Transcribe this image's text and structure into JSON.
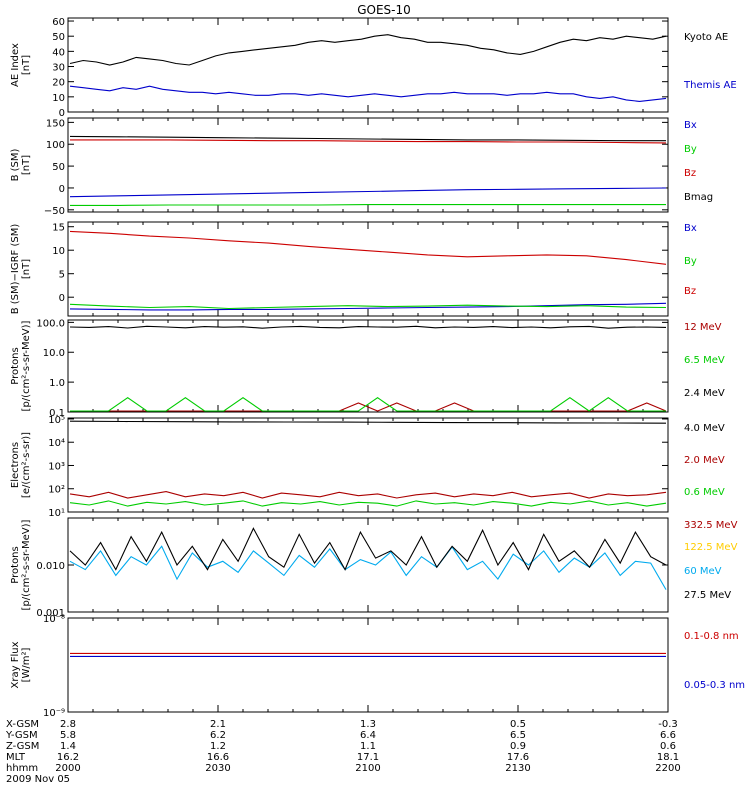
{
  "title": "GOES-10",
  "chart_data": [
    {
      "type": "line",
      "ylabel": [
        "AE Index",
        "[nT]"
      ],
      "ylim": [
        0,
        62
      ],
      "yticks": [
        "0",
        "10",
        "20",
        "30",
        "40",
        "50",
        "60"
      ],
      "ytick_values": [
        0,
        10,
        20,
        30,
        40,
        50,
        60
      ],
      "series": [
        {
          "name": "Kyoto AE",
          "color": "#000000",
          "values": [
            32,
            34,
            33,
            31,
            33,
            36,
            35,
            34,
            32,
            31,
            34,
            37,
            39,
            40,
            41,
            42,
            43,
            44,
            46,
            47,
            46,
            47,
            48,
            50,
            51,
            49,
            48,
            46,
            46,
            45,
            44,
            42,
            41,
            39,
            38,
            40,
            43,
            46,
            48,
            47,
            49,
            48,
            50,
            49,
            48,
            50
          ]
        },
        {
          "name": "Themis AE",
          "color": "#0000cc",
          "values": [
            17,
            16,
            15,
            14,
            16,
            15,
            17,
            15,
            14,
            13,
            13,
            12,
            13,
            12,
            11,
            11,
            12,
            12,
            11,
            12,
            11,
            10,
            11,
            12,
            11,
            10,
            11,
            12,
            12,
            13,
            12,
            12,
            12,
            11,
            12,
            12,
            13,
            12,
            12,
            10,
            9,
            10,
            8,
            7,
            8,
            9
          ]
        }
      ]
    },
    {
      "type": "line",
      "ylabel": [
        "B (SM)",
        "[nT]"
      ],
      "ylim": [
        -55,
        160
      ],
      "yticks": [
        "−50",
        "0",
        "50",
        "100",
        "150"
      ],
      "ytick_values": [
        -50,
        0,
        50,
        100,
        150
      ],
      "series": [
        {
          "name": "Bx",
          "color": "#0000cc",
          "values": [
            -20,
            -18,
            -16,
            -14,
            -12,
            -10,
            -8,
            -6,
            -4,
            -3,
            -2,
            -1,
            0
          ]
        },
        {
          "name": "By",
          "color": "#00cc00",
          "values": [
            -40,
            -40,
            -39,
            -39,
            -39,
            -39,
            -38,
            -38,
            -38,
            -38,
            -38,
            -38,
            -38
          ]
        },
        {
          "name": "Bz",
          "color": "#cc0000",
          "values": [
            110,
            110,
            110,
            109,
            108,
            108,
            107,
            106,
            106,
            105,
            105,
            104,
            103
          ]
        },
        {
          "name": "Bmag",
          "color": "#000000",
          "values": [
            118,
            117,
            116,
            115,
            114,
            113,
            112,
            111,
            110,
            110,
            109,
            108,
            108
          ]
        }
      ]
    },
    {
      "type": "line",
      "ylabel": [
        "B (SM)−IGRF (SM)",
        "[nT]"
      ],
      "ylim": [
        -4,
        16
      ],
      "yticks": [
        "0",
        "5",
        "10",
        "15"
      ],
      "ytick_values": [
        0,
        5,
        10,
        15
      ],
      "series": [
        {
          "name": "Bx",
          "color": "#0000cc",
          "values": [
            -2.5,
            -2.6,
            -2.7,
            -2.7,
            -2.6,
            -2.6,
            -2.5,
            -2.4,
            -2.3,
            -2.2,
            -2.1,
            -2.0,
            -1.8,
            -1.6,
            -1.5,
            -1.3
          ]
        },
        {
          "name": "By",
          "color": "#00cc00",
          "values": [
            -1.5,
            -1.9,
            -2.2,
            -2.0,
            -2.4,
            -2.2,
            -2.0,
            -1.8,
            -2.0,
            -1.9,
            -1.7,
            -1.9,
            -2.0,
            -1.8,
            -2.1,
            -2.2
          ]
        },
        {
          "name": "Bz",
          "color": "#cc0000",
          "values": [
            14,
            13.6,
            13,
            12.6,
            12,
            11.5,
            10.8,
            10.2,
            9.6,
            9,
            8.6,
            8.8,
            9,
            8.8,
            8,
            7
          ]
        }
      ]
    },
    {
      "type": "line",
      "ylabel": [
        "Protons",
        "[p/(cm²-s-sr-MeV)]"
      ],
      "ylog": true,
      "ylim": [
        0.1,
        120
      ],
      "yticks": [
        "0.1",
        "1.0",
        "10.0",
        "100.0"
      ],
      "ytick_values": [
        0.1,
        1,
        10,
        100
      ],
      "series": [
        {
          "name": "12 MeV",
          "color": "#aa0000",
          "values": [
            0.1,
            0.1,
            0.1,
            0.1,
            0.1,
            0.1,
            0.1,
            0.1,
            0.1,
            0.1,
            0.1,
            0.1,
            0.1,
            0.1,
            0.1,
            0.2,
            0.1,
            0.2,
            0.1,
            0.1,
            0.2,
            0.1,
            0.1,
            0.1,
            0.1,
            0.1,
            0.1,
            0.1,
            0.1,
            0.1,
            0.2,
            0.1
          ]
        },
        {
          "name": "6.5 MeV",
          "color": "#00cc00",
          "values": [
            0.1,
            0.1,
            0.1,
            0.3,
            0.1,
            0.1,
            0.3,
            0.1,
            0.1,
            0.3,
            0.1,
            0.1,
            0.1,
            0.1,
            0.1,
            0.1,
            0.3,
            0.1,
            0.1,
            0.1,
            0.1,
            0.1,
            0.1,
            0.1,
            0.1,
            0.1,
            0.3,
            0.1,
            0.3,
            0.1,
            0.1,
            0.1
          ]
        },
        {
          "name": "2.4 MeV",
          "color": "#000000",
          "values": [
            70,
            68,
            72,
            65,
            74,
            70,
            66,
            72,
            69,
            71,
            64,
            70,
            73,
            68,
            66,
            72,
            70,
            69,
            74,
            66,
            70,
            68,
            72,
            67,
            70,
            66,
            71,
            73,
            64,
            69,
            70,
            68
          ]
        }
      ]
    },
    {
      "type": "line",
      "ylabel": [
        "Electrons",
        "[e/(cm²-s-sr)]"
      ],
      "ylog": true,
      "ylim": [
        10,
        110000
      ],
      "yticks": [
        "10¹",
        "10²",
        "10³",
        "10⁴",
        "10⁵"
      ],
      "ytick_values": [
        10,
        100,
        1000,
        10000,
        100000
      ],
      "series": [
        {
          "name": "4.0 MeV",
          "color": "#000000",
          "values": [
            80000,
            78000,
            76000,
            75000,
            74000,
            73000,
            72000,
            70000,
            69000,
            68000,
            67000,
            66000
          ]
        },
        {
          "name": "2.0 MeV",
          "color": "#aa0000",
          "values": [
            60,
            45,
            70,
            40,
            55,
            75,
            45,
            60,
            50,
            70,
            40,
            65,
            55,
            45,
            70,
            50,
            60,
            40,
            55,
            65,
            45,
            60,
            50,
            70,
            45,
            55,
            65,
            40,
            60,
            50,
            55,
            70
          ]
        },
        {
          "name": "0.6 MeV",
          "color": "#00cc00",
          "values": [
            25,
            20,
            30,
            18,
            26,
            22,
            28,
            20,
            24,
            30,
            18,
            25,
            22,
            28,
            20,
            26,
            24,
            18,
            30,
            22,
            25,
            20,
            28,
            24,
            18,
            26,
            22,
            30,
            20,
            25,
            18,
            24
          ]
        }
      ]
    },
    {
      "type": "line",
      "ylabel": [
        "Protons",
        "[p/(cm²-s-sr-MeV)]"
      ],
      "ylog": true,
      "ylim": [
        0.001,
        0.1
      ],
      "yticks": [
        "0.001",
        "0.010"
      ],
      "ytick_values": [
        0.001,
        0.01
      ],
      "series": [
        {
          "name": "332.5 MeV",
          "color": "#aa0000",
          "values": []
        },
        {
          "name": "122.5 MeV",
          "color": "#ffcc00",
          "values": []
        },
        {
          "name": "60 MeV",
          "color": "#00aaee",
          "values": [
            0.012,
            0.008,
            0.02,
            0.006,
            0.015,
            0.01,
            0.025,
            0.005,
            0.018,
            0.009,
            0.012,
            0.007,
            0.02,
            0.011,
            0.006,
            0.016,
            0.009,
            0.022,
            0.008,
            0.013,
            0.01,
            0.019,
            0.006,
            0.015,
            0.009,
            0.024,
            0.008,
            0.012,
            0.005,
            0.017,
            0.01,
            0.02,
            0.007,
            0.014,
            0.009,
            0.018,
            0.006,
            0.012,
            0.011,
            0.003
          ]
        },
        {
          "name": "27.5 MeV",
          "color": "#000000",
          "values": [
            0.02,
            0.01,
            0.03,
            0.008,
            0.04,
            0.012,
            0.05,
            0.01,
            0.025,
            0.008,
            0.035,
            0.012,
            0.06,
            0.015,
            0.009,
            0.045,
            0.011,
            0.03,
            0.008,
            0.05,
            0.014,
            0.02,
            0.01,
            0.04,
            0.009,
            0.025,
            0.012,
            0.055,
            0.01,
            0.03,
            0.008,
            0.045,
            0.012,
            0.02,
            0.009,
            0.035,
            0.011,
            0.05,
            0.015,
            0.01
          ]
        }
      ]
    },
    {
      "type": "line",
      "ylabel": [
        "Xray Flux",
        "[W/m²]"
      ],
      "ylog": true,
      "ylim": [
        1e-09,
        1e-08
      ],
      "yticks": [
        "10⁻⁹",
        "10⁻⁸"
      ],
      "ytick_values": [
        1e-09,
        1e-08
      ],
      "series": [
        {
          "name": "0.1-0.8 nm",
          "color": "#cc0000",
          "values": [
            4.2e-09,
            4.2e-09,
            4.2e-09,
            4.2e-09,
            4.2e-09,
            4.2e-09
          ]
        },
        {
          "name": "0.05-0.3 nm",
          "color": "#0000cc",
          "values": [
            3.9e-09,
            3.9e-09,
            3.9e-09,
            3.9e-09,
            3.9e-09,
            3.9e-09
          ]
        }
      ]
    }
  ],
  "x_axis": {
    "labels": [
      "X-GSM",
      "Y-GSM",
      "Z-GSM",
      "MLT",
      "hhmm"
    ],
    "columns": [
      [
        "2.8",
        "5.8",
        "1.4",
        "16.2",
        "2000"
      ],
      [
        "2.1",
        "6.2",
        "1.2",
        "16.6",
        "2030"
      ],
      [
        "1.3",
        "6.4",
        "1.1",
        "17.1",
        "2100"
      ],
      [
        "0.5",
        "6.5",
        "0.9",
        "17.6",
        "2130"
      ],
      [
        "-0.3",
        "6.6",
        "0.6",
        "18.1",
        "2200"
      ]
    ],
    "date": "2009 Nov 05"
  }
}
